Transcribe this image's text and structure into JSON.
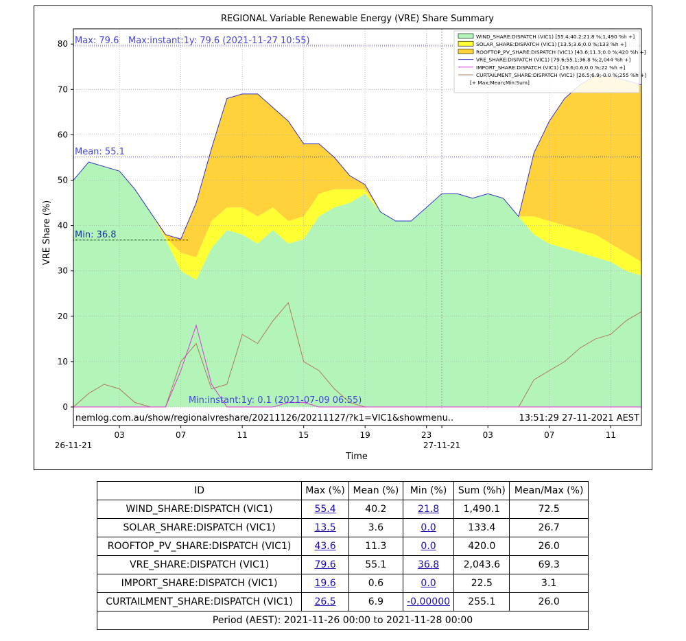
{
  "chart_data": {
    "type": "area",
    "title": "REGIONAL Variable Renewable Energy (VRE) Share Summary",
    "xlabel": "Time",
    "ylabel": "VRE Share (%)",
    "ylim": [
      0,
      84
    ],
    "yticks": [
      0,
      10,
      20,
      30,
      40,
      50,
      60,
      70,
      80
    ],
    "xticks": [
      "03",
      "07",
      "11",
      "15",
      "19",
      "23",
      "03",
      "07",
      "11"
    ],
    "x_date_labels": [
      "26-11-21",
      "27-11-21"
    ],
    "grid": true,
    "legend_placement": "top-right",
    "annotations": {
      "max_label": "Max: 79.6",
      "max_instant": "Max:instant:1y: 79.6 (2021-11-27 10:55)",
      "mean_label": "Mean: 55.1",
      "min_label": "Min: 36.8",
      "min_instant": "Min:instant:1y: 0.1 (2021-07-09 06:55)",
      "url": "nemlog.com.au/show/regionalvreshare/20211126/20211127/?k1=VIC1&showmenu..",
      "timestamp": "13:51:29 27-11-2021 AEST"
    },
    "reference_lines": {
      "max": 79.6,
      "mean": 55.1,
      "min": 36.8
    },
    "legend": [
      "WIND_SHARE:DISPATCH (VIC1) [55.4;40.2;21.8 %;1,490 %h +]",
      "SOLAR_SHARE:DISPATCH (VIC1) [13.5;3.6;0.0 %;133 %h +]",
      "ROOFTOP_PV_SHARE:DISPATCH (VIC1) [43.6;11.3;0.0 %;420 %h +]",
      "VRE_SHARE:DISPATCH (VIC1) [79.6;55.1;36.8 %;2,044 %h +]",
      "IMPORT_SHARE:DISPATCH (VIC1) [19.6;0.6;0.0 %;22 %h +]",
      "CURTAILMENT_SHARE:DISPATCH (VIC1) [26.5;6.9;-0.0 %;255 %h +]",
      "[+ Max;Mean;Min:Sum]"
    ],
    "colors": {
      "wind": "#b3f5b8",
      "solar": "#ffff33",
      "rooftop": "#ffd23c",
      "vre": "#3333cc",
      "import": "#dd33dd",
      "curtailment": "#b0785a",
      "ref": "#4444dd"
    },
    "hours": [
      0,
      1,
      2,
      3,
      4,
      5,
      6,
      7,
      8,
      9,
      10,
      11,
      12,
      13,
      14,
      15,
      16,
      17,
      18,
      19,
      20,
      21,
      22,
      23,
      24,
      25,
      26,
      27,
      28,
      29,
      30,
      31,
      32,
      33,
      34,
      35,
      36,
      37
    ],
    "series": [
      {
        "key": "wind",
        "values": [
          50,
          54,
          53,
          52,
          48,
          43,
          37,
          30,
          28,
          35,
          39,
          38,
          36,
          39,
          36,
          37,
          42,
          44,
          45,
          47,
          43,
          41,
          41,
          44,
          47,
          47,
          46,
          47,
          46,
          42,
          38,
          36,
          35,
          34,
          33,
          32,
          30,
          29
        ]
      },
      {
        "key": "solar",
        "values": [
          0,
          0,
          0,
          0,
          0,
          0,
          0.5,
          4,
          5,
          6,
          5,
          6,
          6,
          5,
          5,
          5,
          5,
          4,
          3,
          1,
          0,
          0,
          0,
          0,
          0,
          0,
          0,
          0,
          0,
          0,
          4,
          5,
          5,
          5,
          5,
          4,
          4,
          3
        ]
      },
      {
        "key": "rooftop",
        "values": [
          0,
          0,
          0,
          0,
          0,
          0,
          0.5,
          3,
          12,
          16,
          24,
          25,
          27,
          22,
          22,
          16,
          11,
          7,
          3,
          1,
          0,
          0,
          0,
          0,
          0,
          0,
          0,
          0,
          0,
          0,
          14,
          22,
          28,
          32,
          35,
          37,
          38,
          39
        ]
      },
      {
        "key": "vre",
        "values": [
          50,
          54,
          53,
          52,
          48,
          43,
          38,
          37,
          45,
          57,
          68,
          69,
          69,
          66,
          63,
          58,
          58,
          55,
          51,
          49,
          43,
          41,
          41,
          44,
          47,
          47,
          46,
          47,
          46,
          42,
          56,
          63,
          68,
          71,
          73,
          73,
          72,
          71
        ]
      },
      {
        "key": "import",
        "values": [
          0,
          0,
          0,
          0,
          0,
          0,
          0,
          8,
          18,
          5,
          0,
          0,
          0,
          0,
          1,
          1,
          0,
          0,
          0,
          0,
          0,
          0,
          0,
          0,
          0,
          0,
          0,
          0,
          0,
          0,
          0,
          0,
          0,
          0,
          0,
          0,
          0,
          0
        ]
      },
      {
        "key": "curtailment",
        "values": [
          0,
          3,
          5,
          4,
          1,
          0,
          0,
          10,
          14,
          4,
          5,
          16,
          14,
          19,
          23,
          10,
          8,
          4,
          1,
          0,
          0,
          0,
          0,
          0,
          0,
          0,
          0,
          0,
          0,
          0,
          6,
          8,
          10,
          13,
          15,
          16,
          19,
          21
        ]
      }
    ]
  },
  "table": {
    "headers": [
      "ID",
      "Max (%)",
      "Mean (%)",
      "Min (%)",
      "Sum (%h)",
      "Mean/Max (%)"
    ],
    "rows": [
      [
        "WIND_SHARE:DISPATCH (VIC1)",
        "55.4",
        "40.2",
        "21.8",
        "1,490.1",
        "72.5"
      ],
      [
        "SOLAR_SHARE:DISPATCH (VIC1)",
        "13.5",
        "3.6",
        "0.0",
        "133.4",
        "26.7"
      ],
      [
        "ROOFTOP_PV_SHARE:DISPATCH (VIC1)",
        "43.6",
        "11.3",
        "0.0",
        "420.0",
        "26.0"
      ],
      [
        "VRE_SHARE:DISPATCH (VIC1)",
        "79.6",
        "55.1",
        "36.8",
        "2,043.6",
        "69.3"
      ],
      [
        "IMPORT_SHARE:DISPATCH (VIC1)",
        "19.6",
        "0.6",
        "0.0",
        "22.5",
        "3.1"
      ],
      [
        "CURTAILMENT_SHARE:DISPATCH (VIC1)",
        "26.5",
        "6.9",
        "-0.00000",
        "255.1",
        "26.0"
      ]
    ],
    "footer": "Period (AEST): 2021-11-26 00:00 to 2021-11-28 00:00"
  }
}
